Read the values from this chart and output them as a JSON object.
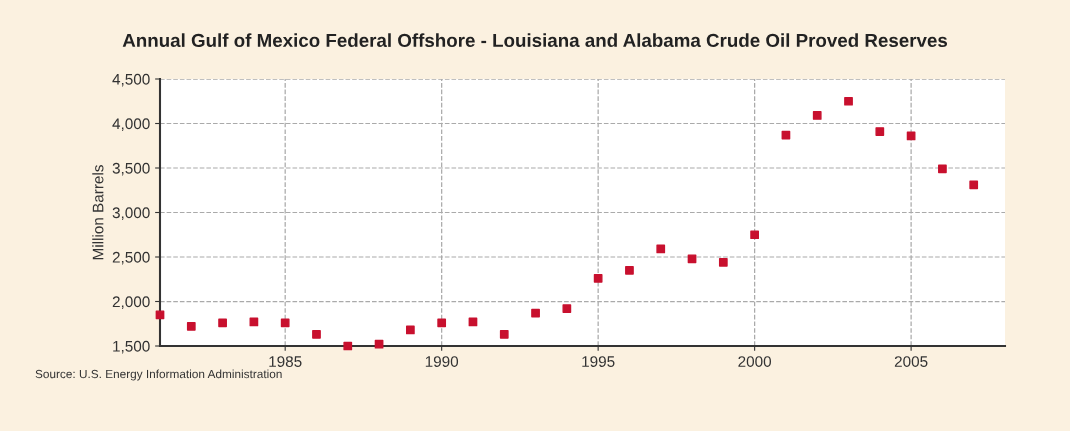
{
  "chart_data": {
    "type": "scatter",
    "title": "Annual Gulf of Mexico Federal Offshore - Louisiana and Alabama Crude Oil Proved Reserves",
    "ylabel": "Million Barrels",
    "x": [
      1981,
      1982,
      1983,
      1984,
      1985,
      1986,
      1987,
      1988,
      1989,
      1990,
      1991,
      1992,
      1993,
      1994,
      1995,
      1996,
      1997,
      1998,
      1999,
      2000,
      2001,
      2002,
      2003,
      2004,
      2005,
      2006,
      2007
    ],
    "series": [
      {
        "color": "#c8102e",
        "values": [
          1850,
          1720,
          1760,
          1770,
          1760,
          1630,
          1500,
          1520,
          1680,
          1760,
          1770,
          1630,
          1870,
          1920,
          2260,
          2350,
          2590,
          2480,
          2440,
          2750,
          3870,
          4090,
          4250,
          3910,
          3860,
          3490,
          3310
        ]
      }
    ],
    "xlim": [
      1981,
      2008
    ],
    "xticks": [
      1985,
      1990,
      1995,
      2000,
      2005
    ],
    "ylim": [
      1500,
      4500
    ],
    "yticks": [
      {
        "value": 1500,
        "label": "1,500"
      },
      {
        "value": 2000,
        "label": "2,000"
      },
      {
        "value": 2500,
        "label": "2,500"
      },
      {
        "value": 3000,
        "label": "3,000"
      },
      {
        "value": 3500,
        "label": "3,500"
      },
      {
        "value": 4000,
        "label": "4,000"
      },
      {
        "value": 4500,
        "label": "4,500"
      }
    ],
    "grid": true,
    "marker": "square",
    "annotations": [
      "Source: U.S. Energy Information Administration"
    ]
  }
}
